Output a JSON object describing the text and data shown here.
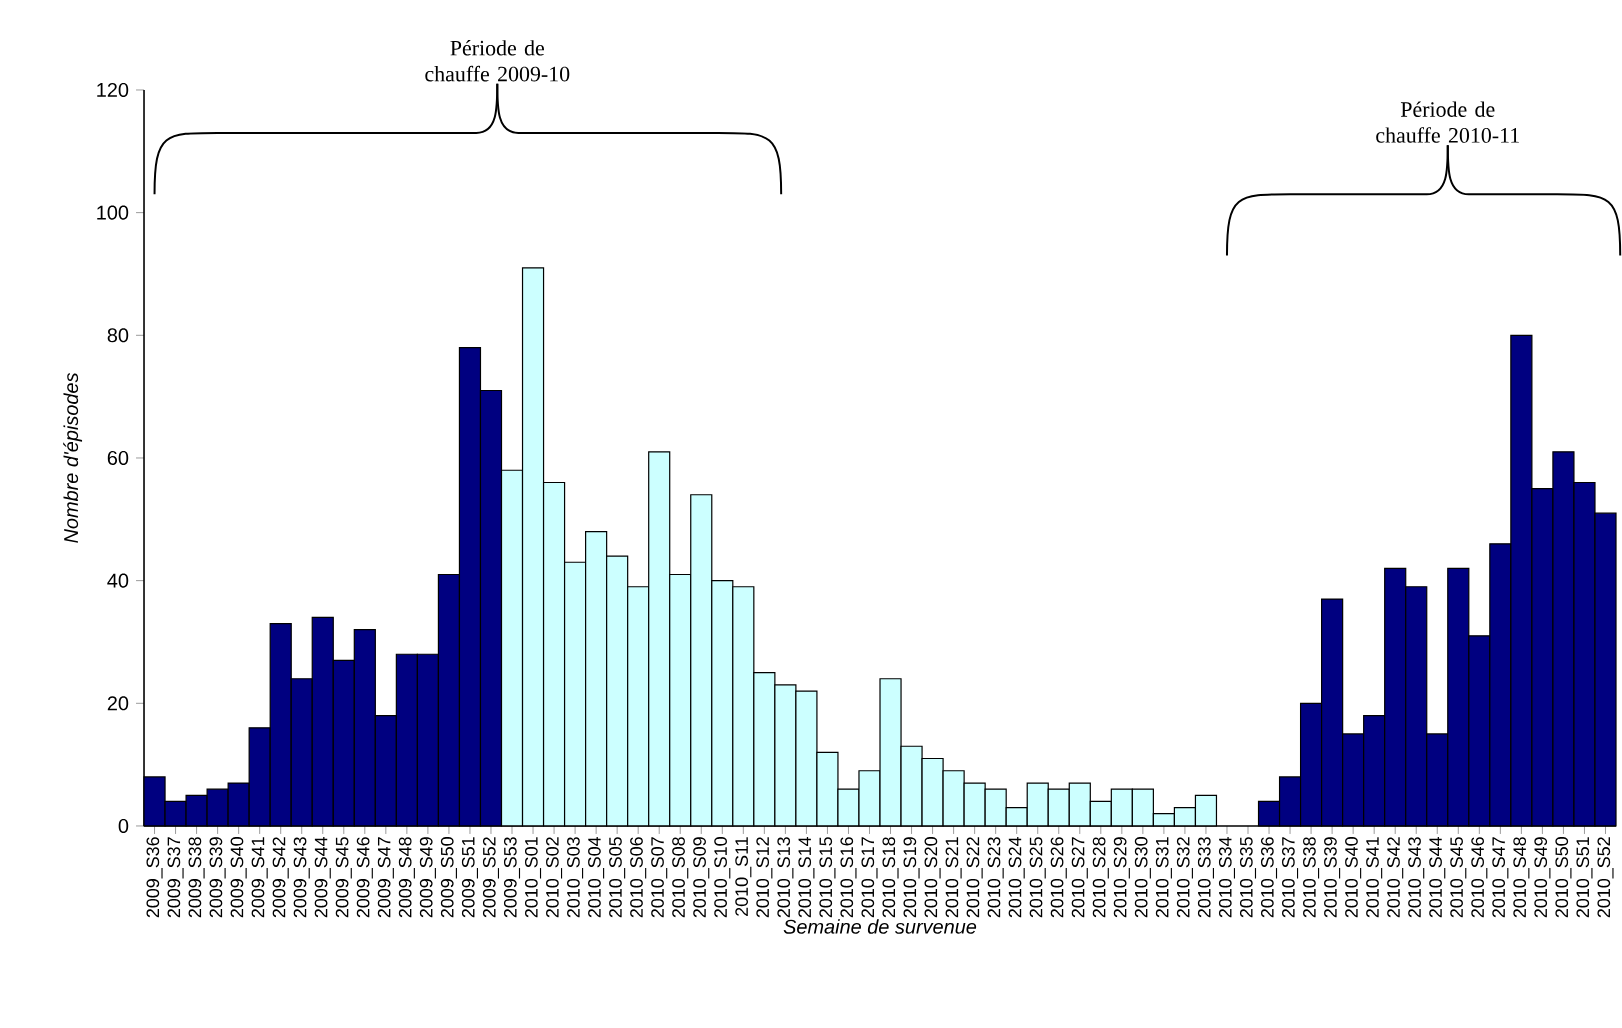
{
  "chart_data": {
    "type": "bar",
    "xlabel": "Semaine de survenue",
    "ylabel": "Nombre d'épisodes",
    "categories": [
      "2009_S36",
      "2009_S37",
      "2009_S38",
      "2009_S39",
      "2009_S40",
      "2009_S41",
      "2009_S42",
      "2009_S43",
      "2009_S44",
      "2009_S45",
      "2009_S46",
      "2009_S47",
      "2009_S48",
      "2009_S49",
      "2009_S50",
      "2009_S51",
      "2009_S52",
      "2009_S53",
      "2010_S01",
      "2010_S02",
      "2010_S03",
      "2010_S04",
      "2010_S05",
      "2010_S06",
      "2010_S07",
      "2010_S08",
      "2010_S09",
      "2010_S10",
      "2010_S11",
      "2010_S12",
      "2010_S13",
      "2010_S14",
      "2010_S15",
      "2010_S16",
      "2010_S17",
      "2010_S18",
      "2010_S19",
      "2010_S20",
      "2010_S21",
      "2010_S22",
      "2010_S23",
      "2010_S24",
      "2010_S25",
      "2010_S26",
      "2010_S27",
      "2010_S28",
      "2010_S29",
      "2010_S30",
      "2010_S31",
      "2010_S32",
      "2010_S33",
      "2010_S34",
      "2010_S35",
      "2010_S36",
      "2010_S37",
      "2010_S38",
      "2010_S39",
      "2010_S40",
      "2010_S41",
      "2010_S42",
      "2010_S43",
      "2010_S44",
      "2010_S45",
      "2010_S46",
      "2010_S47",
      "2010_S48",
      "2010_S49",
      "2010_S50",
      "2010_S51",
      "2010_S52"
    ],
    "series": [
      {
        "color": "#000080",
        "values": [
          8,
          4,
          5,
          6,
          7,
          16,
          33,
          24,
          34,
          27,
          32,
          18,
          28,
          28,
          41,
          78,
          71,
          null,
          null,
          null,
          null,
          null,
          null,
          null,
          null,
          null,
          null,
          null,
          null,
          null,
          null,
          null,
          null,
          null,
          null,
          null,
          null,
          null,
          null,
          null,
          null,
          null,
          null,
          null,
          null,
          null,
          null,
          null,
          null,
          null,
          null,
          null,
          null,
          4,
          8,
          20,
          37,
          15,
          18,
          42,
          39,
          15,
          42,
          31,
          46,
          80,
          55,
          61,
          56,
          51
        ]
      },
      {
        "color": "#ccffff",
        "values": [
          null,
          null,
          null,
          null,
          null,
          null,
          null,
          null,
          null,
          null,
          null,
          null,
          null,
          null,
          null,
          null,
          null,
          58,
          91,
          56,
          43,
          48,
          44,
          39,
          61,
          41,
          54,
          40,
          39,
          25,
          23,
          22,
          12,
          6,
          9,
          24,
          13,
          11,
          9,
          7,
          6,
          3,
          7,
          6,
          7,
          4,
          6,
          6,
          2,
          3,
          5,
          null,
          null,
          null,
          null,
          null,
          null,
          null,
          null,
          null,
          null,
          null,
          null,
          null,
          null,
          null,
          null,
          null,
          null,
          null
        ]
      }
    ],
    "ylim": [
      0,
      120
    ],
    "yticks": [
      0,
      20,
      40,
      60,
      80,
      100,
      120
    ],
    "grid": false,
    "annotations": [
      "Période de chauffe 2009-10",
      "Période de chauffe 2010-11"
    ]
  }
}
